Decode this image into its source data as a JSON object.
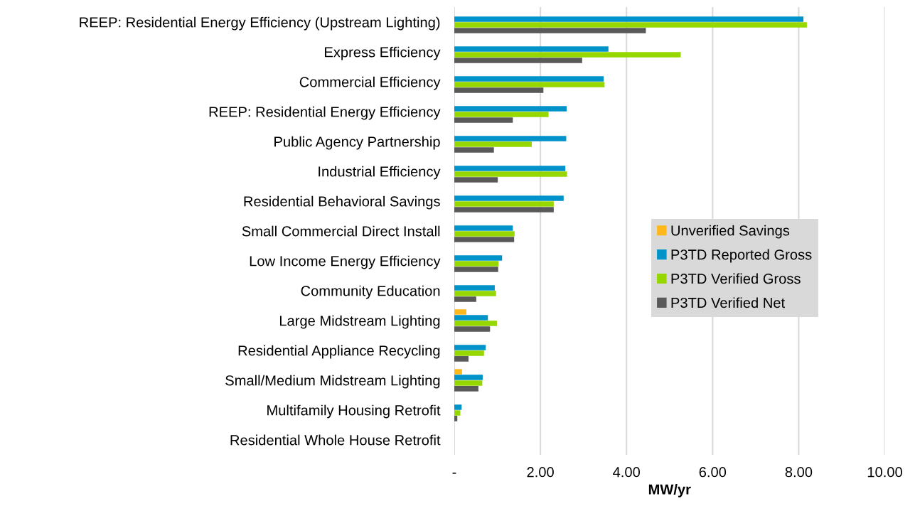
{
  "chart_data": {
    "type": "bar",
    "orientation": "horizontal",
    "xlabel": "MW/yr",
    "categories": [
      "REEP: Residential Energy Efficiency (Upstream Lighting)",
      "Express Efficiency",
      "Commercial Efficiency",
      "REEP: Residential Energy Efficiency",
      "Public Agency Partnership",
      "Industrial Efficiency",
      "Residential Behavioral Savings",
      "Small Commercial Direct Install",
      "Low Income Energy Efficiency",
      "Community Education",
      "Large Midstream Lighting",
      "Residential Appliance Recycling",
      "Small/Medium Midstream Lighting",
      "Multifamily Housing Retrofit",
      "Residential Whole House Retrofit"
    ],
    "series": [
      {
        "name": "Unverified Savings",
        "color": "#ffb81c",
        "values": [
          0,
          0,
          0,
          0,
          0,
          0,
          0,
          0,
          0,
          0,
          0.28,
          0,
          0.18,
          0,
          0
        ]
      },
      {
        "name": "P3TD Reported Gross",
        "color": "#0093c9",
        "values": [
          8.11,
          3.58,
          3.47,
          2.61,
          2.6,
          2.58,
          2.54,
          1.36,
          1.11,
          0.94,
          0.78,
          0.73,
          0.66,
          0.17,
          0
        ]
      },
      {
        "name": "P3TD Verified Gross",
        "color": "#97d700",
        "values": [
          8.19,
          5.26,
          3.49,
          2.19,
          1.8,
          2.62,
          2.31,
          1.4,
          1.03,
          0.97,
          0.99,
          0.69,
          0.65,
          0.14,
          0
        ]
      },
      {
        "name": "P3TD Verified Net",
        "color": "#595959",
        "values": [
          4.45,
          2.97,
          2.07,
          1.36,
          0.92,
          1.01,
          2.31,
          1.39,
          1.02,
          0.51,
          0.83,
          0.33,
          0.56,
          0.07,
          0
        ]
      }
    ],
    "xlim": [
      0,
      10
    ],
    "xticks": [
      {
        "value": 0,
        "label": "-"
      },
      {
        "value": 2,
        "label": "2.00"
      },
      {
        "value": 4,
        "label": "4.00"
      },
      {
        "value": 6,
        "label": "6.00"
      },
      {
        "value": 8,
        "label": "8.00"
      },
      {
        "value": 10,
        "label": "10.00"
      }
    ],
    "grid": "x",
    "legend": "right"
  }
}
